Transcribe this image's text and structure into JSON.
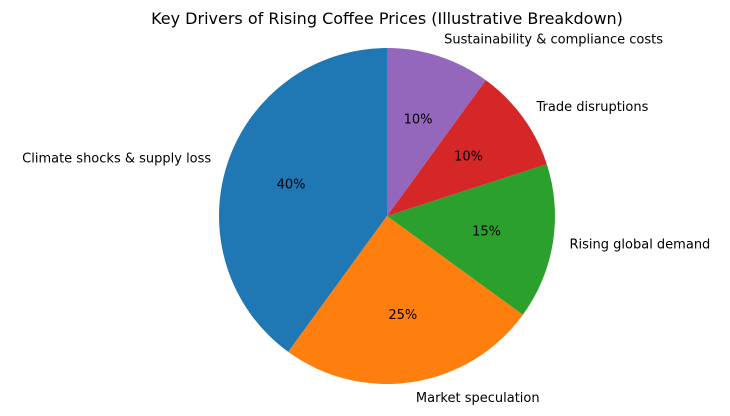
{
  "chart_data": {
    "type": "pie",
    "title": "Key Drivers of Rising Coffee Prices (Illustrative Breakdown)",
    "categories": [
      "Climate shocks & supply loss",
      "Market speculation",
      "Rising global demand",
      "Trade disruptions",
      "Sustainability & compliance costs"
    ],
    "values": [
      40,
      25,
      15,
      10,
      10
    ],
    "value_labels": [
      "40%",
      "25%",
      "15%",
      "10%",
      "10%"
    ],
    "colors": [
      "#1f77b4",
      "#ff7f0e",
      "#2ca02c",
      "#d62728",
      "#9467bd"
    ],
    "start_angle_deg": 90,
    "direction": "counterclockwise",
    "legend": "none"
  }
}
